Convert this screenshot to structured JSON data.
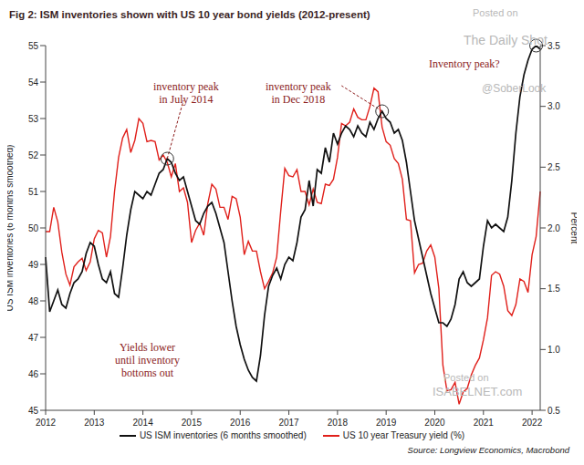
{
  "chart_data": {
    "type": "line",
    "title": "Fig 2: ISM inventories shown with US 10 year bond yields (2012-present)",
    "y_label": "US ISM inventories (6 months smoothed)",
    "y2_label": "Percent",
    "source": "Source: Longview Economics, Macrobond",
    "watermarks": [
      "Posted on",
      "The Daily Shot",
      "@SoberLook",
      "Posted on",
      "ISABELNET.com"
    ],
    "categories": [
      "2012",
      null,
      null,
      null,
      null,
      null,
      null,
      null,
      null,
      null,
      null,
      null,
      "2013",
      null,
      null,
      null,
      null,
      null,
      null,
      null,
      null,
      null,
      null,
      null,
      "2014",
      null,
      null,
      null,
      null,
      null,
      null,
      null,
      null,
      null,
      null,
      null,
      "2015",
      null,
      null,
      null,
      null,
      null,
      null,
      null,
      null,
      null,
      null,
      null,
      "2016",
      null,
      null,
      null,
      null,
      null,
      null,
      null,
      null,
      null,
      null,
      null,
      "2017",
      null,
      null,
      null,
      null,
      null,
      null,
      null,
      null,
      null,
      null,
      null,
      "2018",
      null,
      null,
      null,
      null,
      null,
      null,
      null,
      null,
      null,
      null,
      null,
      "2019",
      null,
      null,
      null,
      null,
      null,
      null,
      null,
      null,
      null,
      null,
      null,
      "2020",
      null,
      null,
      null,
      null,
      null,
      null,
      null,
      null,
      null,
      null,
      null,
      "2021",
      null,
      null,
      null,
      null,
      null,
      null,
      null,
      null,
      null,
      null,
      null,
      "2022",
      null,
      null
    ],
    "series": [
      {
        "name": "US 10 year Treasury yield (%)",
        "color": "#e0201b",
        "axis": "y2",
        "values": [
          1.97,
          1.97,
          2.17,
          2.05,
          1.8,
          1.62,
          1.53,
          1.68,
          1.72,
          1.75,
          1.65,
          1.72,
          1.91,
          1.98,
          1.96,
          1.76,
          1.93,
          2.3,
          2.58,
          2.74,
          2.81,
          2.62,
          2.72,
          2.9,
          2.86,
          2.71,
          2.72,
          2.71,
          2.56,
          2.6,
          2.54,
          2.42,
          2.53,
          2.3,
          2.33,
          2.21,
          1.88,
          1.98,
          2.04,
          1.94,
          2.2,
          2.36,
          2.32,
          2.17,
          2.17,
          2.07,
          2.26,
          2.24,
          2.09,
          1.78,
          1.89,
          1.81,
          1.81,
          1.64,
          1.5,
          1.56,
          1.63,
          1.76,
          2.14,
          2.49,
          2.43,
          2.42,
          2.48,
          2.3,
          2.3,
          2.19,
          2.32,
          2.21,
          2.2,
          2.36,
          2.35,
          2.4,
          2.58,
          2.86,
          2.84,
          2.87,
          2.98,
          2.91,
          2.89,
          2.89,
          3.0,
          3.15,
          3.12,
          2.83,
          2.71,
          2.68,
          2.57,
          2.53,
          2.4,
          2.07,
          2.06,
          1.63,
          1.7,
          1.71,
          1.81,
          1.86,
          1.76,
          1.5,
          0.87,
          0.66,
          0.67,
          0.73,
          0.55,
          0.65,
          0.68,
          0.79,
          0.87,
          0.93,
          1.08,
          1.26,
          1.61,
          1.64,
          1.62,
          1.52,
          1.32,
          1.28,
          1.37,
          1.58,
          1.56,
          1.47,
          1.78,
          1.93,
          2.3
        ]
      },
      {
        "name": "US ISM inventories (6 months smoothed)",
        "color": "#111111",
        "axis": "y",
        "values": [
          49.2,
          47.7,
          48.0,
          48.3,
          47.9,
          47.8,
          48.2,
          48.5,
          48.6,
          48.8,
          49.3,
          49.6,
          49.5,
          49.0,
          48.6,
          48.5,
          48.8,
          48.2,
          48.1,
          48.9,
          49.8,
          50.5,
          51.0,
          50.9,
          50.8,
          51.0,
          50.9,
          51.2,
          51.5,
          51.6,
          51.9,
          51.8,
          51.5,
          51.3,
          51.4,
          51.0,
          50.6,
          50.2,
          50.1,
          50.4,
          50.6,
          50.7,
          50.4,
          50.0,
          49.6,
          48.8,
          48.0,
          47.3,
          46.8,
          46.4,
          46.1,
          45.9,
          45.8,
          46.5,
          47.6,
          48.4,
          48.7,
          48.9,
          48.6,
          49.0,
          49.2,
          49.1,
          49.6,
          50.3,
          50.5,
          51.3,
          50.6,
          51.6,
          51.5,
          52.2,
          51.8,
          52.6,
          52.3,
          52.6,
          52.8,
          52.7,
          52.5,
          52.8,
          52.6,
          52.5,
          52.9,
          52.7,
          53.0,
          53.2,
          53.0,
          52.9,
          52.6,
          52.7,
          52.4,
          51.8,
          51.0,
          50.2,
          49.7,
          49.2,
          48.7,
          48.2,
          47.8,
          47.4,
          47.4,
          47.3,
          47.5,
          47.9,
          48.6,
          48.8,
          48.5,
          48.4,
          48.5,
          48.6,
          49.5,
          50.2,
          50.0,
          50.1,
          50.0,
          49.9,
          50.3,
          51.3,
          52.6,
          53.6,
          54.2,
          54.6,
          54.9,
          55.0,
          54.9
        ]
      }
    ],
    "ylim": [
      45,
      55
    ],
    "yticks": [
      45,
      46,
      47,
      48,
      49,
      50,
      51,
      52,
      53,
      54,
      55
    ],
    "y2lim": [
      0.5,
      3.5
    ],
    "y2ticks": [
      0.5,
      {
        "value": 1,
        "label": "1.0"
      },
      1.5,
      {
        "value": 2,
        "label": "2.0"
      },
      2.5,
      {
        "value": 3,
        "label": "3.0"
      },
      3.5
    ],
    "annotations": [
      {
        "text": [
          "inventory peak",
          "in July 2014"
        ],
        "x": 30
      },
      {
        "text": [
          "inventory peak",
          "in Dec 2018"
        ],
        "x": 83
      },
      {
        "text": [
          "Inventory peak?"
        ],
        "x": 121
      },
      {
        "text": [
          "Yields lower",
          "until inventory",
          "bottoms out"
        ]
      }
    ],
    "grid": false,
    "legend": "bottom"
  }
}
